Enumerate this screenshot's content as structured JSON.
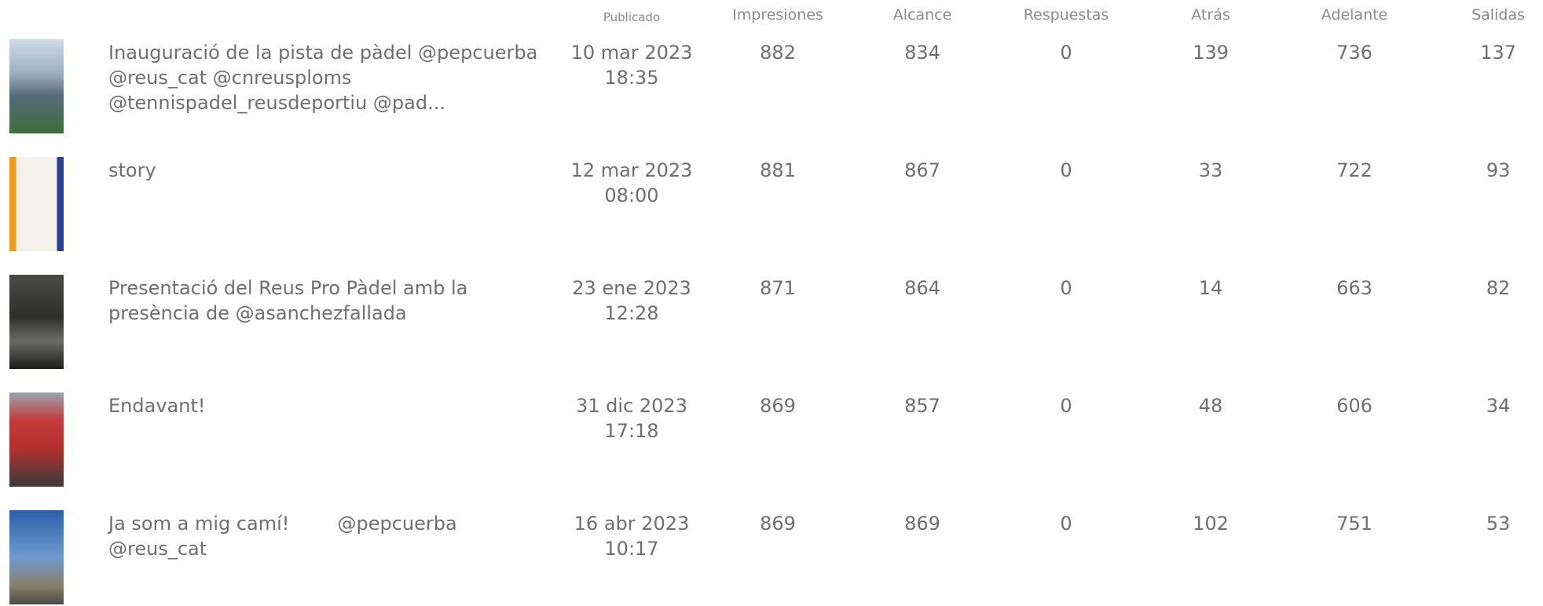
{
  "table": {
    "columns": [
      "Publicado",
      "Impresiones",
      "Alcance",
      "Respuestas",
      "Atrás",
      "Adelante",
      "Salidas"
    ],
    "rows": [
      {
        "title": "Inauguració de la pista de pàdel @pepcuerba @reus_cat @cnreusploms @tennispadel_reusdeportiu @pad...",
        "date": "10 mar 2023",
        "time": "18:35",
        "values": [
          882,
          834,
          0,
          139,
          736,
          137
        ]
      },
      {
        "title": "story",
        "date": "12 mar 2023",
        "time": "08:00",
        "values": [
          881,
          867,
          0,
          33,
          722,
          93
        ]
      },
      {
        "title": "Presentació del Reus Pro Pàdel amb la presència de @asanchezfallada",
        "date": "23 ene 2023",
        "time": "12:28",
        "values": [
          871,
          864,
          0,
          14,
          663,
          82
        ]
      },
      {
        "title": "Endavant!",
        "date": "31 dic 2023",
        "time": "17:18",
        "values": [
          869,
          857,
          0,
          48,
          606,
          34
        ]
      },
      {
        "title": "Ja som a mig camí!        @pepcuerba @reus_cat",
        "date": "16 abr 2023",
        "time": "10:17",
        "values": [
          869,
          869,
          0,
          102,
          751,
          53
        ]
      }
    ]
  }
}
